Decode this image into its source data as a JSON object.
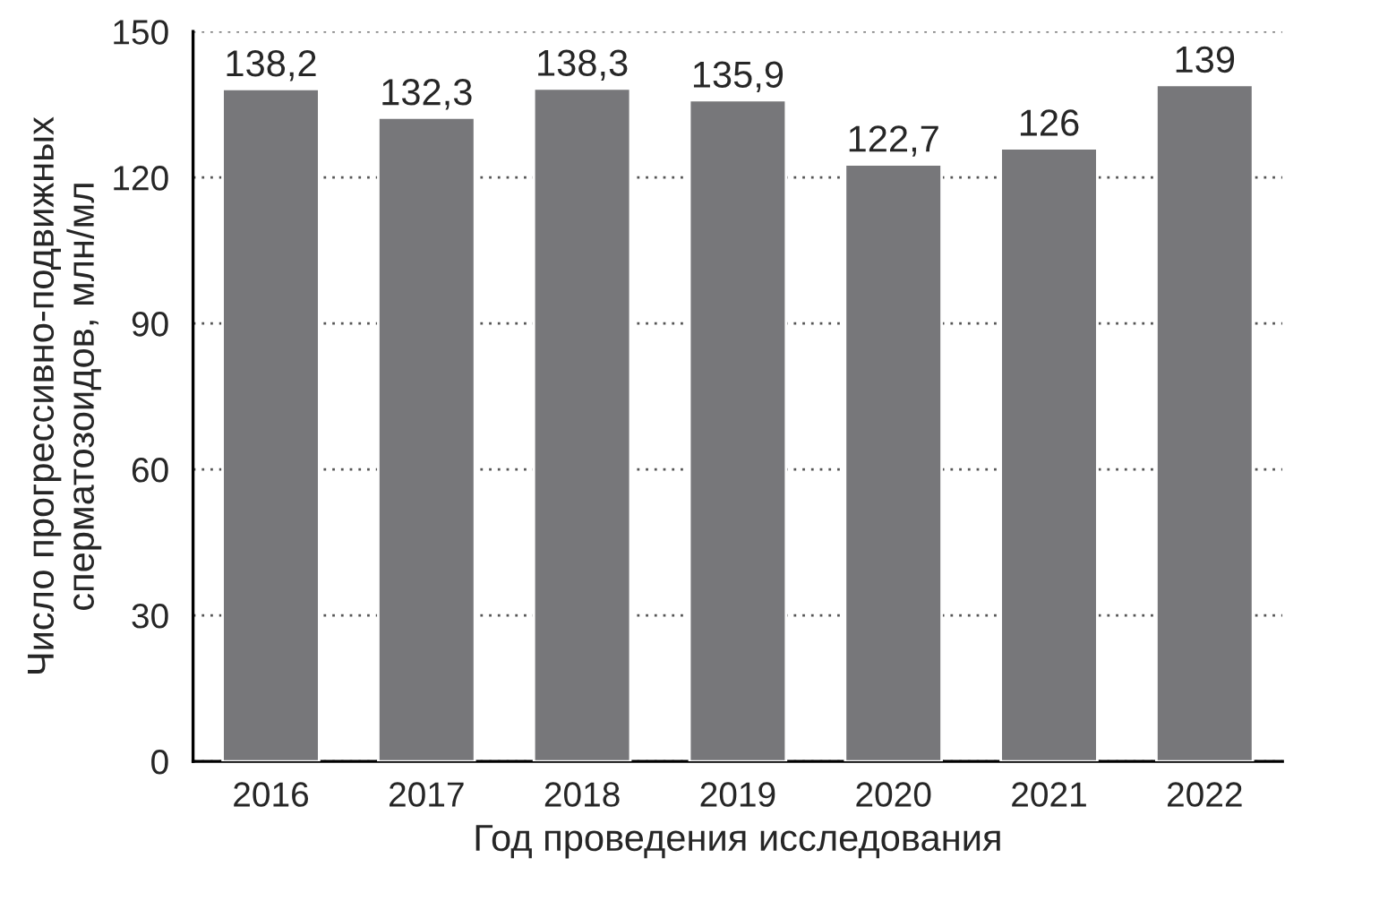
{
  "chart_data": {
    "type": "bar",
    "xlabel": "Год проведения исследования",
    "ylabel": "Число прогрессивно-подвижных\nсперматозоидов, млн/мл",
    "categories": [
      "2016",
      "2017",
      "2018",
      "2019",
      "2020",
      "2021",
      "2022"
    ],
    "values": [
      138.2,
      132.3,
      138.3,
      135.9,
      122.7,
      126,
      139
    ],
    "value_labels": [
      "138,2",
      "132,3",
      "138,3",
      "135,9",
      "122,7",
      "126",
      "139"
    ],
    "color": "#77777a",
    "ylim": [
      0,
      150
    ],
    "yticks": [
      0,
      30,
      60,
      90,
      120,
      150
    ],
    "grid": "y"
  }
}
